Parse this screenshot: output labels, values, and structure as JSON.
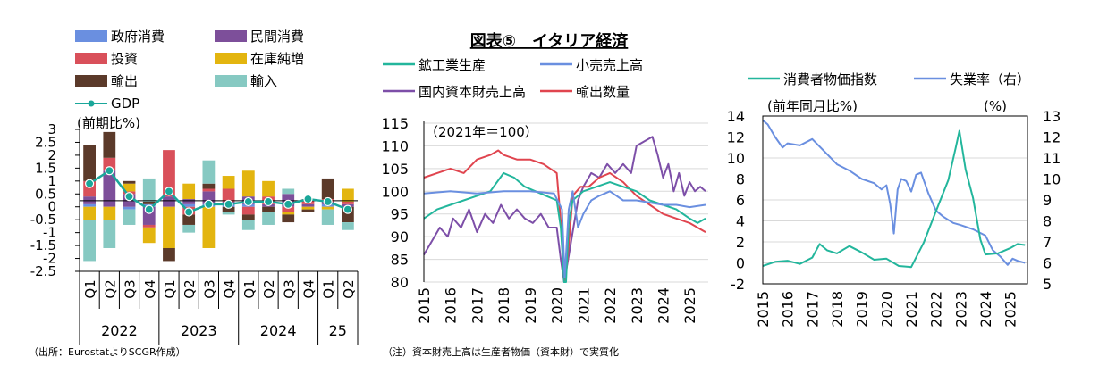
{
  "figure_title": "図表⑤　イタリア経済",
  "source_note": "（出所：EurostatよりSCGR作成）",
  "footnote": "（注）資本財売上高は生産者物価（資本財）で実質化",
  "colors": {
    "gov": "#6a8fe0",
    "priv": "#7d4f9a",
    "inv": "#d9505a",
    "stock": "#e3b50f",
    "exp": "#5b3a2a",
    "imp": "#86c9c2",
    "gdp": "#1aa79a",
    "industrial": "#23b69c",
    "retail": "#6a8fe0",
    "capital": "#7d4fa8",
    "exports_vol": "#e0454f",
    "cpi": "#23b69c",
    "unemp": "#6a8fe0"
  },
  "chart_data": [
    {
      "type": "bar",
      "unit_label": "(前期比%)",
      "ylim": [
        -2.5,
        3
      ],
      "yticks": [
        "3",
        "2.5",
        "2",
        "1.5",
        "1",
        "0.5",
        "0",
        "-0.5",
        "-1",
        "-1.5",
        "-2",
        "-2.5"
      ],
      "categories": [
        "Q1",
        "Q2",
        "Q3",
        "Q4",
        "Q1",
        "Q2",
        "Q3",
        "Q4",
        "Q1",
        "Q2",
        "Q3",
        "Q4",
        "Q1",
        "Q2"
      ],
      "year_labels": [
        "2022",
        "2023",
        "2024",
        "25"
      ],
      "series": [
        {
          "name": "政府消費",
          "values": [
            0.1,
            0.0,
            -0.1,
            0.1,
            0.0,
            0.1,
            0.1,
            0.1,
            0.1,
            0.0,
            0.0,
            0.0,
            0.1,
            0.0
          ]
        },
        {
          "name": "民間消費",
          "values": [
            0.3,
            1.4,
            0.5,
            -0.7,
            0.4,
            0.2,
            0.5,
            0.1,
            0.3,
            0.1,
            0.5,
            0.1,
            0.1,
            0.1
          ]
        },
        {
          "name": "投資",
          "values": [
            0.6,
            0.5,
            0.1,
            -0.1,
            1.8,
            -0.3,
            0.1,
            0.5,
            -0.3,
            0.3,
            -0.2,
            0.2,
            0.1,
            0.1
          ]
        },
        {
          "name": "在庫純増",
          "values": [
            -0.5,
            -0.5,
            0.3,
            -0.6,
            -1.6,
            0.6,
            -1.6,
            0.5,
            1.0,
            0.6,
            -0.1,
            -0.1,
            -0.1,
            0.5
          ]
        },
        {
          "name": "輸出",
          "values": [
            1.4,
            1.0,
            0.1,
            0.1,
            -0.5,
            -0.4,
            0.2,
            -0.2,
            -0.2,
            -0.2,
            -0.3,
            -0.1,
            0.8,
            -0.6
          ]
        },
        {
          "name": "輸入",
          "values": [
            -1.6,
            -1.1,
            -0.6,
            0.9,
            0.0,
            -0.3,
            0.9,
            -0.1,
            -0.4,
            -0.5,
            0.2,
            0.0,
            -0.6,
            -0.3
          ]
        }
      ],
      "line": {
        "name": "GDP",
        "values": [
          0.9,
          1.4,
          0.4,
          -0.1,
          0.6,
          -0.2,
          0.1,
          0.1,
          0.2,
          0.2,
          0.1,
          0.3,
          0.2,
          -0.1
        ]
      }
    },
    {
      "type": "line",
      "unit_label": "（2021年＝100）",
      "ylim": [
        80,
        115
      ],
      "yticks": [
        "115",
        "110",
        "105",
        "100",
        "95",
        "90",
        "85",
        "80"
      ],
      "xlabels": [
        "2015",
        "2016",
        "2017",
        "2018",
        "2019",
        "2020",
        "2021",
        "2022",
        "2023",
        "2024",
        "2025"
      ],
      "x_start": 2015,
      "x_end": 2025.7,
      "series": [
        {
          "name": "鉱工業生産",
          "x": [
            2015.0,
            2015.5,
            2016.0,
            2016.5,
            2017.0,
            2017.5,
            2018.0,
            2018.4,
            2018.8,
            2019.2,
            2019.6,
            2020.0,
            2020.15,
            2020.28,
            2020.35,
            2020.45,
            2020.6,
            2020.8,
            2021.0,
            2021.5,
            2022.0,
            2022.5,
            2023.0,
            2023.5,
            2024.0,
            2024.5,
            2025.0,
            2025.3,
            2025.6
          ],
          "y": [
            94,
            96,
            97,
            98,
            99,
            100,
            104,
            103,
            101,
            100,
            99,
            98,
            92,
            80,
            80,
            93,
            98,
            99,
            100,
            101,
            102,
            101,
            100,
            98,
            97,
            96,
            94,
            93,
            94
          ]
        },
        {
          "name": "小売売上高",
          "x": [
            2015.0,
            2016.0,
            2017.0,
            2018.0,
            2019.0,
            2019.9,
            2020.2,
            2020.3,
            2020.45,
            2020.6,
            2020.8,
            2021.0,
            2021.3,
            2021.6,
            2022.0,
            2022.5,
            2023.0,
            2023.5,
            2024.0,
            2024.5,
            2025.0,
            2025.6
          ],
          "y": [
            99.5,
            100,
            99.5,
            100,
            100,
            99.5,
            96,
            81,
            96,
            100,
            92,
            95,
            98,
            99,
            100,
            98,
            98,
            97.5,
            97,
            97,
            96.5,
            97
          ]
        },
        {
          "name": "国内資本財売上高",
          "x": [
            2015.0,
            2015.3,
            2015.6,
            2015.9,
            2016.1,
            2016.4,
            2016.7,
            2017.0,
            2017.3,
            2017.6,
            2017.9,
            2018.2,
            2018.5,
            2018.8,
            2019.1,
            2019.4,
            2019.7,
            2020.0,
            2020.15,
            2020.28,
            2020.4,
            2020.6,
            2020.8,
            2021.0,
            2021.3,
            2021.6,
            2021.9,
            2022.2,
            2022.5,
            2022.8,
            2023.0,
            2023.3,
            2023.6,
            2023.8,
            2024.0,
            2024.2,
            2024.4,
            2024.6,
            2024.8,
            2025.0,
            2025.2,
            2025.4,
            2025.6
          ],
          "y": [
            86,
            89,
            92,
            90,
            94,
            92,
            96,
            91,
            95,
            93,
            97,
            94,
            96,
            94,
            93,
            95,
            92,
            92,
            85,
            80,
            84,
            91,
            98,
            101,
            104,
            103,
            106,
            104,
            106,
            104,
            110,
            111,
            112,
            108,
            103,
            106,
            100,
            104,
            99,
            102,
            100,
            101,
            100
          ]
        },
        {
          "name": "輸出数量",
          "x": [
            2015.0,
            2015.5,
            2016.0,
            2016.5,
            2017.0,
            2017.5,
            2017.8,
            2018.0,
            2018.5,
            2019.0,
            2019.5,
            2020.0,
            2020.2,
            2020.32,
            2020.45,
            2020.6,
            2020.9,
            2021.2,
            2021.6,
            2022.0,
            2022.5,
            2023.0,
            2023.5,
            2024.0,
            2024.5,
            2025.0,
            2025.3,
            2025.6
          ],
          "y": [
            103,
            104,
            105,
            104,
            107,
            108,
            109,
            108,
            107,
            107,
            106,
            104,
            90,
            80,
            88,
            99,
            101,
            101,
            103,
            104,
            102,
            99,
            97,
            95,
            94,
            93,
            92,
            91
          ]
        }
      ]
    },
    {
      "type": "line",
      "unit_left": "(前年同月比%)",
      "unit_right": "(%)",
      "ylim_left": [
        -2,
        14
      ],
      "ylim_right": [
        5,
        13
      ],
      "yticks_left": [
        "14",
        "12",
        "10",
        "8",
        "6",
        "4",
        "2",
        "0",
        "-2"
      ],
      "yticks_right": [
        "13",
        "12",
        "11",
        "10",
        "9",
        "8",
        "7",
        "6",
        "5"
      ],
      "xlabels": [
        "2015",
        "2016",
        "2017",
        "2018",
        "2019",
        "2020",
        "2021",
        "2022",
        "2023",
        "2024",
        "2025"
      ],
      "x_start": 2015,
      "x_end": 2025.7,
      "series": [
        {
          "name": "消費者物価指数",
          "axis": "left",
          "x": [
            2015.0,
            2015.5,
            2016.0,
            2016.5,
            2017.0,
            2017.3,
            2017.6,
            2018.0,
            2018.5,
            2019.0,
            2019.5,
            2020.0,
            2020.5,
            2021.0,
            2021.5,
            2022.0,
            2022.5,
            2022.8,
            2022.95,
            2023.2,
            2023.5,
            2023.8,
            2024.0,
            2024.5,
            2025.0,
            2025.3,
            2025.6
          ],
          "y": [
            -0.3,
            0.1,
            0.2,
            -0.1,
            0.5,
            1.8,
            1.2,
            0.9,
            1.6,
            1.0,
            0.3,
            0.4,
            -0.3,
            -0.4,
            1.9,
            4.9,
            7.9,
            11.0,
            12.6,
            8.9,
            6.2,
            2.2,
            0.8,
            0.9,
            1.4,
            1.8,
            1.7
          ]
        },
        {
          "name": "失業率（右）",
          "axis": "right",
          "x": [
            2015.0,
            2015.2,
            2015.5,
            2015.8,
            2016.0,
            2016.5,
            2017.0,
            2017.5,
            2018.0,
            2018.5,
            2019.0,
            2019.5,
            2019.8,
            2020.0,
            2020.15,
            2020.3,
            2020.45,
            2020.6,
            2020.8,
            2021.0,
            2021.2,
            2021.4,
            2021.7,
            2022.0,
            2022.3,
            2022.7,
            2023.0,
            2023.5,
            2024.0,
            2024.3,
            2024.6,
            2024.9,
            2025.1,
            2025.3,
            2025.6
          ],
          "y": [
            12.8,
            12.6,
            12.0,
            11.5,
            11.7,
            11.6,
            11.9,
            11.3,
            10.7,
            10.4,
            10.0,
            9.8,
            9.5,
            9.7,
            8.8,
            7.4,
            9.5,
            10.0,
            9.9,
            9.4,
            10.2,
            10.3,
            9.3,
            8.5,
            8.2,
            7.9,
            7.8,
            7.6,
            7.3,
            6.6,
            6.3,
            5.9,
            6.2,
            6.1,
            6.0
          ]
        }
      ]
    }
  ]
}
